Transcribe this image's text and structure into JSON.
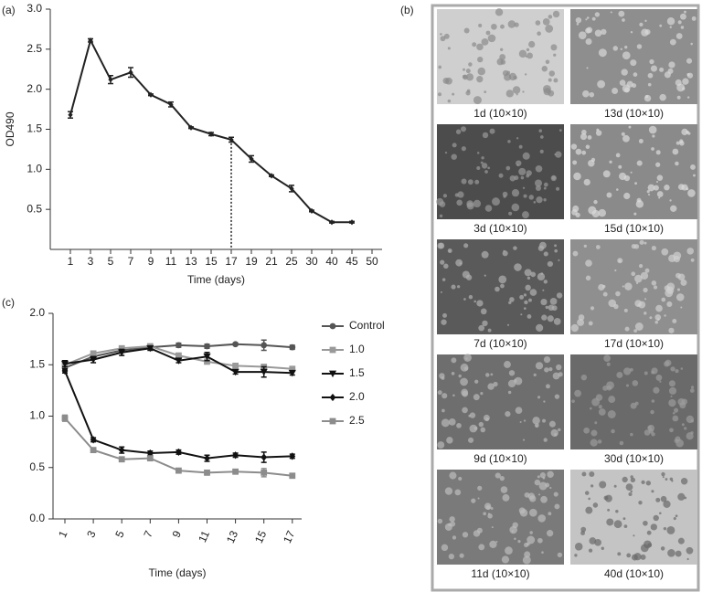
{
  "chart_data": [
    {
      "type": "line",
      "label": "(a)",
      "xlabel": "Time (days)",
      "ylabel": "OD490",
      "color": "#222222",
      "marker": "diamond",
      "categories": [
        "1",
        "3",
        "5",
        "7",
        "9",
        "11",
        "13",
        "15",
        "17",
        "19",
        "21",
        "25",
        "30",
        "40",
        "45",
        "50"
      ],
      "values": [
        1.68,
        2.61,
        2.12,
        2.21,
        1.93,
        1.81,
        1.52,
        1.44,
        1.37,
        1.13,
        0.92,
        0.76,
        0.48,
        0.34,
        0.34,
        null
      ],
      "errors": [
        0.04,
        0.02,
        0.05,
        0.06,
        0.01,
        0.03,
        0.01,
        0.02,
        0.03,
        0.04,
        0.01,
        0.04,
        0.01,
        0.01,
        0.01,
        null
      ],
      "ylim": [
        0,
        3
      ],
      "yticks": [
        0.5,
        {
          "value": 1,
          "label": "1.0"
        },
        1.5,
        {
          "value": 2,
          "label": "2.0"
        },
        2.5,
        {
          "value": 3,
          "label": "3.0"
        }
      ]
    },
    {
      "type": "line",
      "label": "(c)",
      "xlabel": "Time (days)",
      "legend": "right",
      "categories": [
        "1",
        "3",
        "5",
        "7",
        "9",
        "11",
        "13",
        "15",
        "17"
      ],
      "ylim": [
        0,
        2
      ],
      "yticks": [
        {
          "value": 0,
          "label": "0.0"
        },
        0.5,
        {
          "value": 1,
          "label": "1.0"
        },
        1.5,
        {
          "value": 2,
          "label": "2.0"
        }
      ],
      "series": [
        {
          "name": "Control",
          "color": "#555555",
          "marker": "circle",
          "values": [
            1.47,
            1.58,
            1.64,
            1.67,
            1.69,
            1.68,
            1.7,
            1.69,
            1.67
          ],
          "errors": [
            0.02,
            0.02,
            0.02,
            0.02,
            0.02,
            0.02,
            0.01,
            0.05,
            0.02
          ]
        },
        {
          "name": "1.0",
          "color": "#999999",
          "marker": "square",
          "values": [
            1.5,
            1.61,
            1.66,
            1.68,
            1.59,
            1.53,
            1.49,
            1.48,
            1.46
          ],
          "errors": [
            0.02,
            0.02,
            0.02,
            0.02,
            0.02,
            0.02,
            0.02,
            0.02,
            0.02
          ]
        },
        {
          "name": "1.5",
          "color": "#111111",
          "marker": "triangle-down",
          "values": [
            1.51,
            1.55,
            1.62,
            1.66,
            1.54,
            1.58,
            1.43,
            1.43,
            1.42
          ],
          "errors": [
            0.03,
            0.03,
            0.03,
            0.02,
            0.02,
            0.04,
            0.02,
            0.05,
            0.02
          ]
        },
        {
          "name": "2.0",
          "color": "#111111",
          "marker": "diamond",
          "values": [
            1.44,
            0.77,
            0.67,
            0.64,
            0.65,
            0.59,
            0.62,
            0.6,
            0.61
          ],
          "errors": [
            0.02,
            0.02,
            0.03,
            0.02,
            0.02,
            0.03,
            0.02,
            0.05,
            0.02
          ]
        },
        {
          "name": "2.5",
          "color": "#8c8c8c",
          "marker": "square",
          "values": [
            0.98,
            0.67,
            0.58,
            0.59,
            0.47,
            0.45,
            0.46,
            0.45,
            0.42
          ],
          "errors": [
            0.03,
            0.02,
            0.02,
            0.02,
            0.02,
            0.02,
            0.02,
            0.04,
            0.01
          ]
        }
      ]
    }
  ],
  "micrographs": {
    "label": "(b)",
    "captions": [
      "1d (10×10)",
      "13d (10×10)",
      "3d (10×10)",
      "15d (10×10)",
      "7d (10×10)",
      "17d (10×10)",
      "9d (10×10)",
      "30d (10×10)",
      "11d (10×10)",
      "40d (10×10)"
    ]
  }
}
